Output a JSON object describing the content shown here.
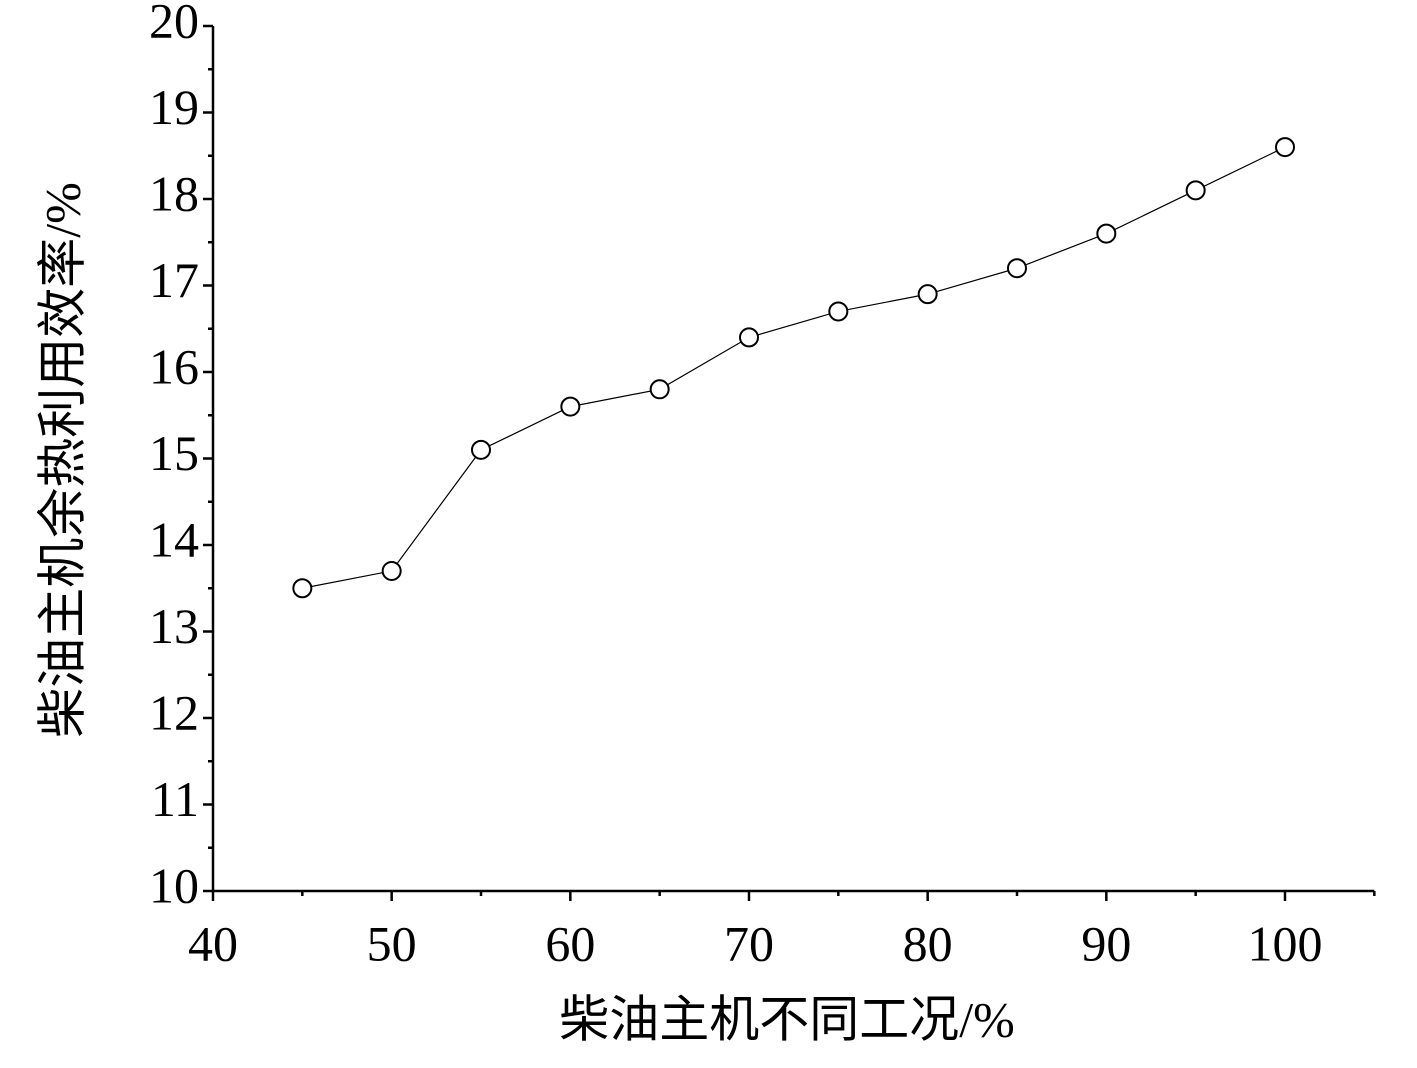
{
  "chart_data": {
    "type": "line",
    "x_label": "柴油主机不同工况/%",
    "y_label": "柴油主机余热利用效率/%",
    "x": [
      45,
      50,
      55,
      60,
      65,
      70,
      75,
      80,
      85,
      90,
      95,
      100
    ],
    "series": [
      {
        "color": "#000000",
        "values": [
          13.5,
          13.7,
          15.1,
          15.6,
          15.8,
          16.4,
          16.7,
          16.9,
          17.2,
          17.6,
          18.1,
          18.6
        ]
      }
    ],
    "xlim": [
      40,
      105
    ],
    "xticks": [
      40,
      50,
      60,
      70,
      80,
      90,
      100
    ],
    "ylim": [
      10,
      20
    ],
    "yticks": [
      10,
      11,
      12,
      13,
      14,
      15,
      16,
      17,
      18,
      19,
      20
    ],
    "grid": false
  }
}
